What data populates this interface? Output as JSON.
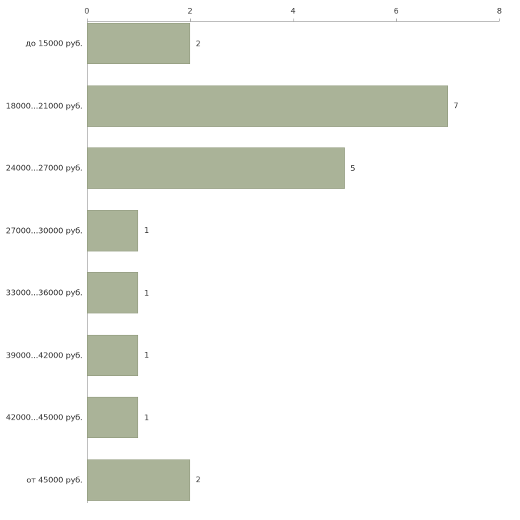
{
  "chart_data": {
    "type": "bar",
    "orientation": "horizontal",
    "title": "",
    "xlabel": "",
    "ylabel": "",
    "categories": [
      "до 15000 руб.",
      "18000...21000 руб.",
      "24000...27000 руб.",
      "27000...30000 руб.",
      "33000...36000 руб.",
      "39000...42000 руб.",
      "42000...45000 руб.",
      "от 45000 руб."
    ],
    "values": [
      2,
      7,
      5,
      1,
      1,
      1,
      1,
      2
    ],
    "xlim": [
      0,
      8
    ],
    "x_ticks": [
      "0",
      "2",
      "4",
      "6",
      "8"
    ],
    "grid": false,
    "legend_position": "none",
    "colors": {
      "bar_fill": "#aab398",
      "bar_border": "#9aa388",
      "axis": "#ababab",
      "text": "#3c3c3c",
      "background": "#ffffff"
    }
  }
}
